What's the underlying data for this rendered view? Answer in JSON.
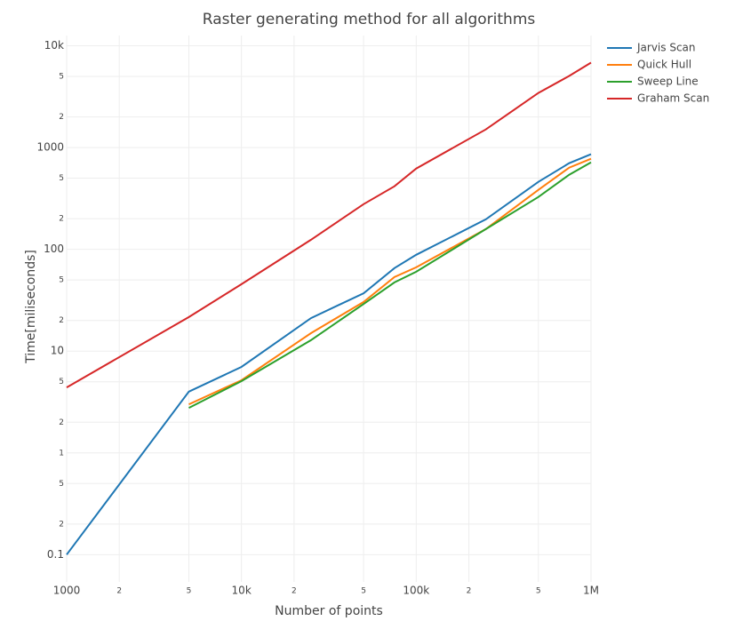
{
  "chart_data": {
    "type": "line",
    "title": "Raster generating method for all algorithms",
    "x_label": "Number of points",
    "y_label": "Time[miliseconds]",
    "log_x": true,
    "log_y": true,
    "grid": true,
    "legend": "top-right",
    "x": [
      1000,
      5000,
      10000,
      25000,
      50000,
      75000,
      100000,
      250000,
      500000,
      750000,
      1000000
    ],
    "series": [
      {
        "name": "Jarvis Scan",
        "color": "#1f77b4",
        "values": [
          0.1,
          4,
          7,
          21.1,
          37,
          65.3,
          88.3,
          197,
          460,
          702,
          859
        ]
      },
      {
        "name": "Quick Hull",
        "color": "#ff7f0e",
        "values": [
          null,
          3.0,
          5.17,
          15.0,
          30.4,
          53.4,
          66.6,
          158,
          384,
          635,
          776
        ]
      },
      {
        "name": "Sweep Line",
        "color": "#2ca02c",
        "values": [
          null,
          2.77,
          5.07,
          12.8,
          29,
          47.3,
          60.2,
          158,
          327,
          540,
          716
        ]
      },
      {
        "name": "Graham Scan",
        "color": "#d62728",
        "values": [
          4.4,
          21.6,
          45.4,
          124,
          278,
          416,
          622,
          1507,
          3440,
          5050,
          6820
        ]
      }
    ],
    "xlim": [
      1000,
      1000000
    ],
    "ylim": [
      0.054,
      12600
    ],
    "xticks": [
      1000,
      {
        "value": 2000,
        "label": "2"
      },
      {
        "value": 5000,
        "label": "5"
      },
      {
        "value": 10000,
        "label": "10k"
      },
      {
        "value": 20000,
        "label": "2"
      },
      {
        "value": 50000,
        "label": "5"
      },
      {
        "value": 100000,
        "label": "100k"
      },
      {
        "value": 200000,
        "label": "2"
      },
      {
        "value": 500000,
        "label": "5"
      },
      {
        "value": 1000000,
        "label": "1M"
      }
    ],
    "yticks": [
      0.1,
      {
        "value": 0.2,
        "label": "2"
      },
      {
        "value": 0.5,
        "label": "5"
      },
      1,
      2,
      5,
      10,
      {
        "value": 20,
        "label": "2"
      },
      {
        "value": 50,
        "label": "5"
      },
      100,
      {
        "value": 200,
        "label": "2"
      },
      {
        "value": 500,
        "label": "5"
      },
      1000,
      {
        "value": 2000,
        "label": "2"
      },
      {
        "value": 5000,
        "label": "5"
      },
      {
        "value": 10000,
        "label": "10k"
      }
    ]
  }
}
